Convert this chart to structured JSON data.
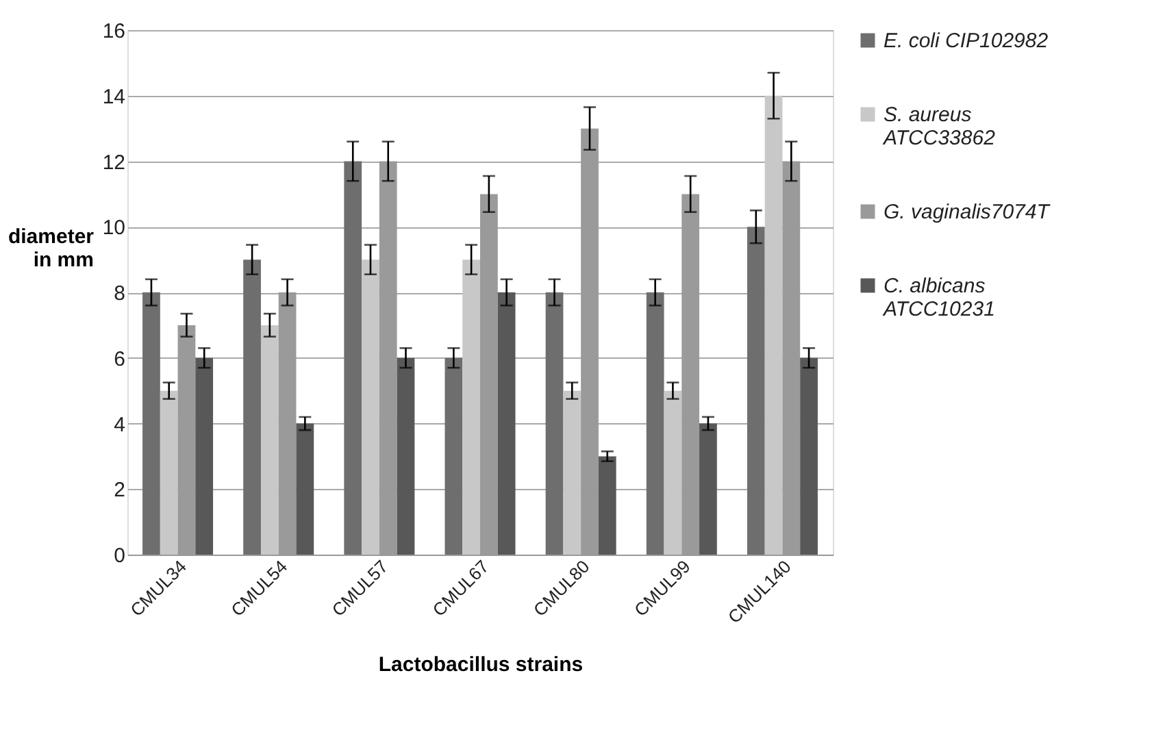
{
  "chart_data": {
    "type": "bar",
    "xlabel": "Lactobacillus strains",
    "ylabel": "diameter\nin mm",
    "categories": [
      "CMUL34",
      "CMUL54",
      "CMUL57",
      "CMUL67",
      "CMUL80",
      "CMUL99",
      "CMUL140"
    ],
    "series": [
      {
        "name": "E. coli CIP102982",
        "color": "#6e6e6e",
        "values": [
          8,
          9,
          12,
          6,
          8,
          8,
          10
        ],
        "errors": [
          0.4,
          0.45,
          0.6,
          0.3,
          0.4,
          0.4,
          0.5
        ]
      },
      {
        "name": "S. aureus\nATCC33862",
        "color": "#c8c8c8",
        "values": [
          5,
          7,
          9,
          9,
          5,
          5,
          14
        ],
        "errors": [
          0.25,
          0.35,
          0.45,
          0.45,
          0.25,
          0.25,
          0.7
        ]
      },
      {
        "name": "G. vaginalis7074T",
        "color": "#9a9a9a",
        "values": [
          7,
          8,
          12,
          11,
          13,
          11,
          12
        ],
        "errors": [
          0.35,
          0.4,
          0.6,
          0.55,
          0.65,
          0.55,
          0.6
        ]
      },
      {
        "name": "C. albicans\nATCC10231",
        "color": "#585858",
        "values": [
          6,
          4,
          6,
          8,
          3,
          4,
          6
        ],
        "errors": [
          0.3,
          0.2,
          0.3,
          0.4,
          0.15,
          0.2,
          0.3
        ]
      }
    ],
    "ylim": [
      0,
      16
    ],
    "yticks": [
      0,
      2,
      4,
      6,
      8,
      10,
      12,
      14,
      16
    ],
    "grid": "y",
    "legend": "right"
  }
}
